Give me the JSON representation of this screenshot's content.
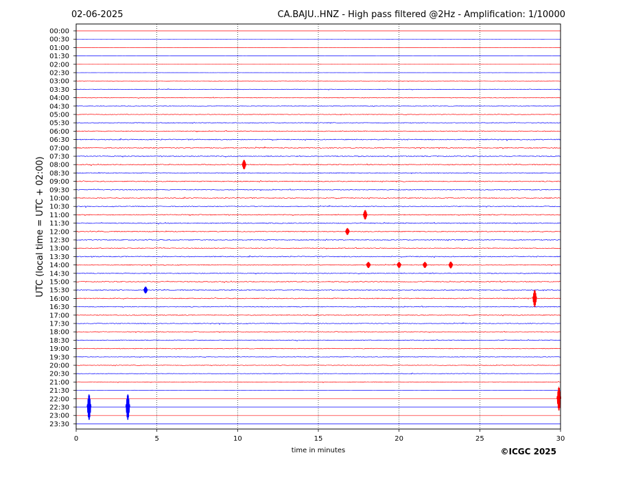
{
  "header": {
    "date": "02-06-2025",
    "title": "CA.BAJU..HNZ - High pass filtered @2Hz - Amplification: 1/10000"
  },
  "footer": {
    "copyright": "©ICGC 2025"
  },
  "colors": {
    "even_trace": "#ff0000",
    "odd_trace": "#0000ff",
    "background": "#ffffff",
    "axis": "#000000"
  },
  "chart_data": {
    "type": "line",
    "title": "CA.BAJU..HNZ - High pass filtered @2Hz - Amplification: 1/10000",
    "xlabel": "time in minutes",
    "ylabel": "UTC (local time = UTC + 02:00)",
    "xlim": [
      0,
      30
    ],
    "xticks": [
      "0",
      "5",
      "10",
      "15",
      "20",
      "25",
      "30"
    ],
    "x_gridlines": [
      5,
      10,
      15,
      20,
      25
    ],
    "grid": "vertical dotted",
    "row_labels": [
      "00:00",
      "00:30",
      "01:00",
      "01:30",
      "02:00",
      "02:30",
      "03:00",
      "03:30",
      "04:00",
      "04:30",
      "05:00",
      "05:30",
      "06:00",
      "06:30",
      "07:00",
      "07:30",
      "08:00",
      "08:30",
      "09:00",
      "09:30",
      "10:00",
      "10:30",
      "11:00",
      "11:30",
      "12:00",
      "12:30",
      "13:00",
      "13:30",
      "14:00",
      "14:30",
      "15:00",
      "15:30",
      "16:00",
      "16:30",
      "17:00",
      "17:30",
      "18:00",
      "18:30",
      "19:00",
      "19:30",
      "20:00",
      "20:30",
      "21:00",
      "21:30",
      "22:00",
      "22:30",
      "23:00",
      "23:30"
    ],
    "row_colors": "alternating red (even rows) / blue (odd rows)",
    "noise_level": {
      "00:00": 0.02,
      "00:30": 0.02,
      "01:00": 0.02,
      "01:30": 0.02,
      "02:00": 0.02,
      "02:30": 0.05,
      "03:00": 0.15,
      "03:30": 0.25,
      "04:00": 0.3,
      "04:30": 0.3,
      "05:00": 0.3,
      "05:30": 0.35,
      "06:00": 0.4,
      "06:30": 0.45,
      "07:00": 0.5,
      "07:30": 0.45,
      "08:00": 0.45,
      "08:30": 0.4,
      "09:00": 0.45,
      "09:30": 0.4,
      "10:00": 0.45,
      "10:30": 0.4,
      "11:00": 0.45,
      "11:30": 0.45,
      "12:00": 0.45,
      "12:30": 0.45,
      "13:00": 0.4,
      "13:30": 0.45,
      "14:00": 0.4,
      "14:30": 0.4,
      "15:00": 0.45,
      "15:30": 0.45,
      "16:00": 0.45,
      "16:30": 0.4,
      "17:00": 0.4,
      "17:30": 0.35,
      "18:00": 0.35,
      "18:30": 0.35,
      "19:00": 0.35,
      "19:30": 0.3,
      "20:00": 0.3,
      "20:30": 0.25,
      "21:00": 0.25,
      "21:30": 0.05,
      "22:00": 0.01,
      "22:30": 0.02,
      "23:00": 0.01,
      "23:30": 0.01
    },
    "events": [
      {
        "row": "08:00",
        "t": 10.4,
        "amp": 1.4
      },
      {
        "row": "11:00",
        "t": 17.9,
        "amp": 1.4
      },
      {
        "row": "12:00",
        "t": 16.8,
        "amp": 1.0
      },
      {
        "row": "14:00",
        "t": 18.1,
        "amp": 0.9
      },
      {
        "row": "14:00",
        "t": 20.0,
        "amp": 0.9
      },
      {
        "row": "14:00",
        "t": 21.6,
        "amp": 0.9
      },
      {
        "row": "14:00",
        "t": 23.2,
        "amp": 1.0
      },
      {
        "row": "15:30",
        "t": 4.3,
        "amp": 1.0
      },
      {
        "row": "16:00",
        "t": 28.4,
        "amp": 2.5
      },
      {
        "row": "22:00",
        "t": 29.9,
        "amp": 3.5
      },
      {
        "row": "22:30",
        "t": 0.8,
        "amp": 3.8
      },
      {
        "row": "22:30",
        "t": 3.2,
        "amp": 3.8
      }
    ]
  }
}
